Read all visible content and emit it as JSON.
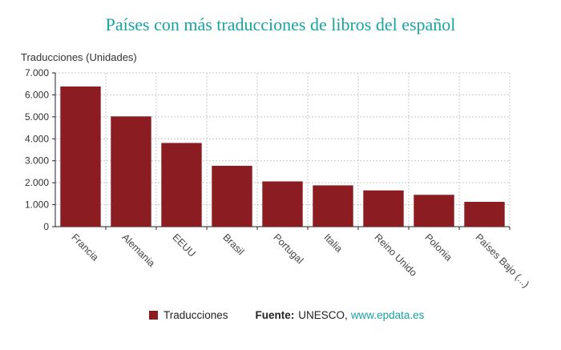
{
  "colors": {
    "bar": "#8b1d22",
    "title": "#1aa3a3",
    "grid": "#c8c8c8",
    "link": "#1aa3a3"
  },
  "chart_data": {
    "type": "bar",
    "title": "Países con más traducciones de libros del español",
    "ylabel": "Traducciones (Unidades)",
    "xlabel": "",
    "ylim": [
      0,
      7000
    ],
    "yticks": [
      "0",
      "1.000",
      "2.000",
      "3.000",
      "4.000",
      "5.000",
      "6.000",
      "7.000"
    ],
    "grid": true,
    "legend_position": "bottom",
    "categories": [
      "Francia",
      "Alemania",
      "EEUU",
      "Brasil",
      "Portugal",
      "Italia",
      "Reino Unido",
      "Polonia",
      "Países Bajo (...)"
    ],
    "series": [
      {
        "name": "Traducciones",
        "values": [
          6380,
          5020,
          3810,
          2770,
          2060,
          1880,
          1650,
          1450,
          1130
        ]
      }
    ]
  },
  "source": {
    "label": "Fuente:",
    "org": "UNESCO,",
    "link": "www.epdata.es"
  }
}
